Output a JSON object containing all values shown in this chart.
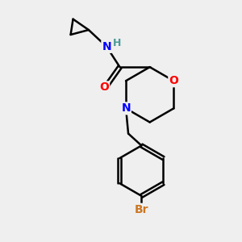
{
  "background_color": "#efefef",
  "atom_colors": {
    "C": "#000000",
    "N": "#0000ff",
    "O": "#ff0000",
    "Br": "#cc7722",
    "H": "#4a9a9a"
  },
  "bond_color": "#000000",
  "bond_width": 1.8,
  "figsize": [
    3.0,
    3.0
  ],
  "dpi": 100,
  "xlim": [
    0,
    10
  ],
  "ylim": [
    0,
    10
  ]
}
